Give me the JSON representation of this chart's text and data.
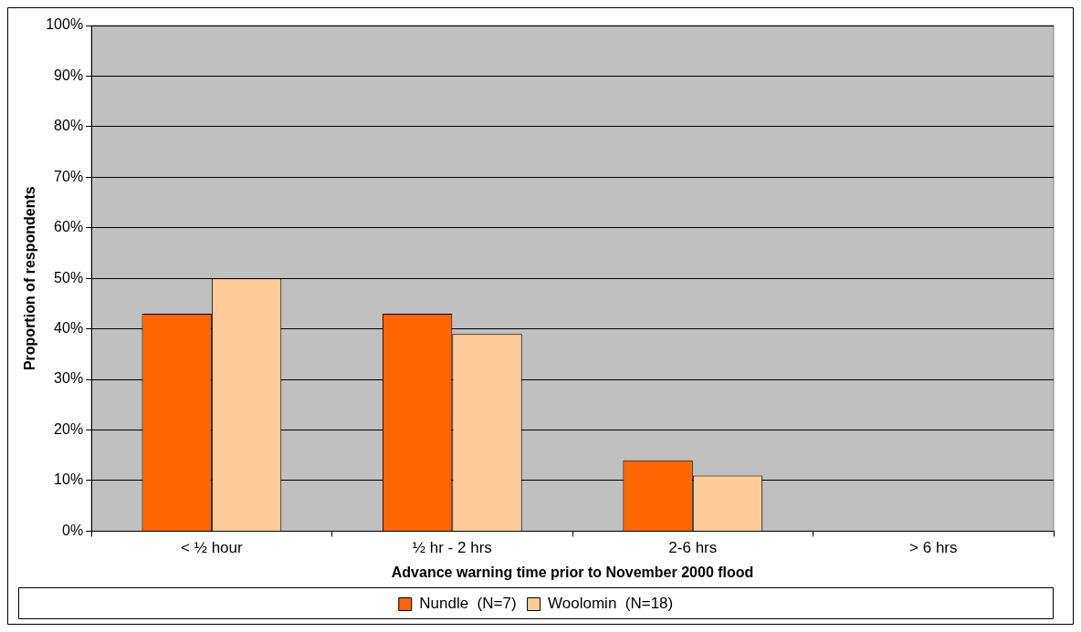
{
  "chart_data": {
    "type": "bar",
    "xlabel": "Advance warning time prior to November 2000 flood",
    "ylabel": "Proportion of respondents",
    "categories": [
      "< ½ hour",
      "½ hr - 2 hrs",
      "2-6 hrs",
      "> 6 hrs"
    ],
    "series": [
      {
        "name": "Nundle  (N=7)",
        "color": "#ff6600",
        "values": [
          43,
          43,
          14,
          0
        ]
      },
      {
        "name": "Woolomin  (N=18)",
        "color": "#ffcc99",
        "values": [
          50,
          39,
          11,
          0
        ]
      }
    ],
    "ylim": [
      0,
      100
    ],
    "yticks": [
      {
        "value": 0,
        "label": "0%"
      },
      {
        "value": 10,
        "label": "10%"
      },
      {
        "value": 20,
        "label": "20%"
      },
      {
        "value": 30,
        "label": "30%"
      },
      {
        "value": 40,
        "label": "40%"
      },
      {
        "value": 50,
        "label": "50%"
      },
      {
        "value": 60,
        "label": "60%"
      },
      {
        "value": 70,
        "label": "70%"
      },
      {
        "value": 80,
        "label": "80%"
      },
      {
        "value": 90,
        "label": "90%"
      },
      {
        "value": 100,
        "label": "100%"
      }
    ],
    "grid": "y",
    "legend": "bottom"
  }
}
